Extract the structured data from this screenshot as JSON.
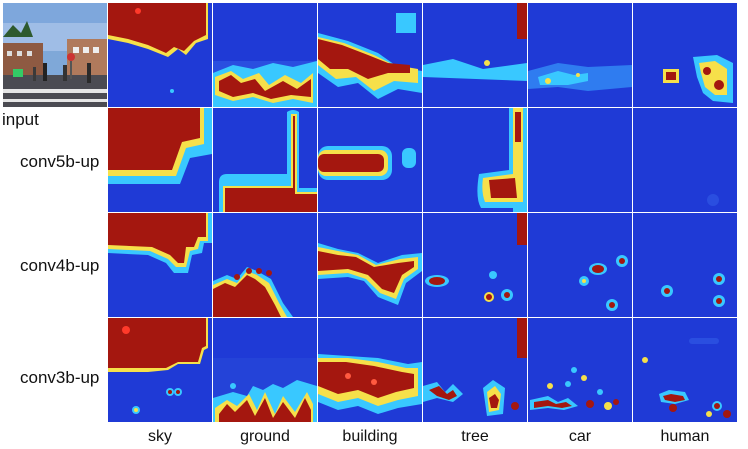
{
  "figure": {
    "row_labels": [
      "input",
      "conv5b-up",
      "conv4b-up",
      "conv3b-up"
    ],
    "column_labels": [
      "sky",
      "ground",
      "building",
      "tree",
      "car",
      "human"
    ]
  },
  "colors": {
    "background": "#1a2fc6",
    "low": "#1f3ad6",
    "mid": "#39c8ff",
    "warm": "#f6e04a",
    "high": "#a4170f"
  }
}
